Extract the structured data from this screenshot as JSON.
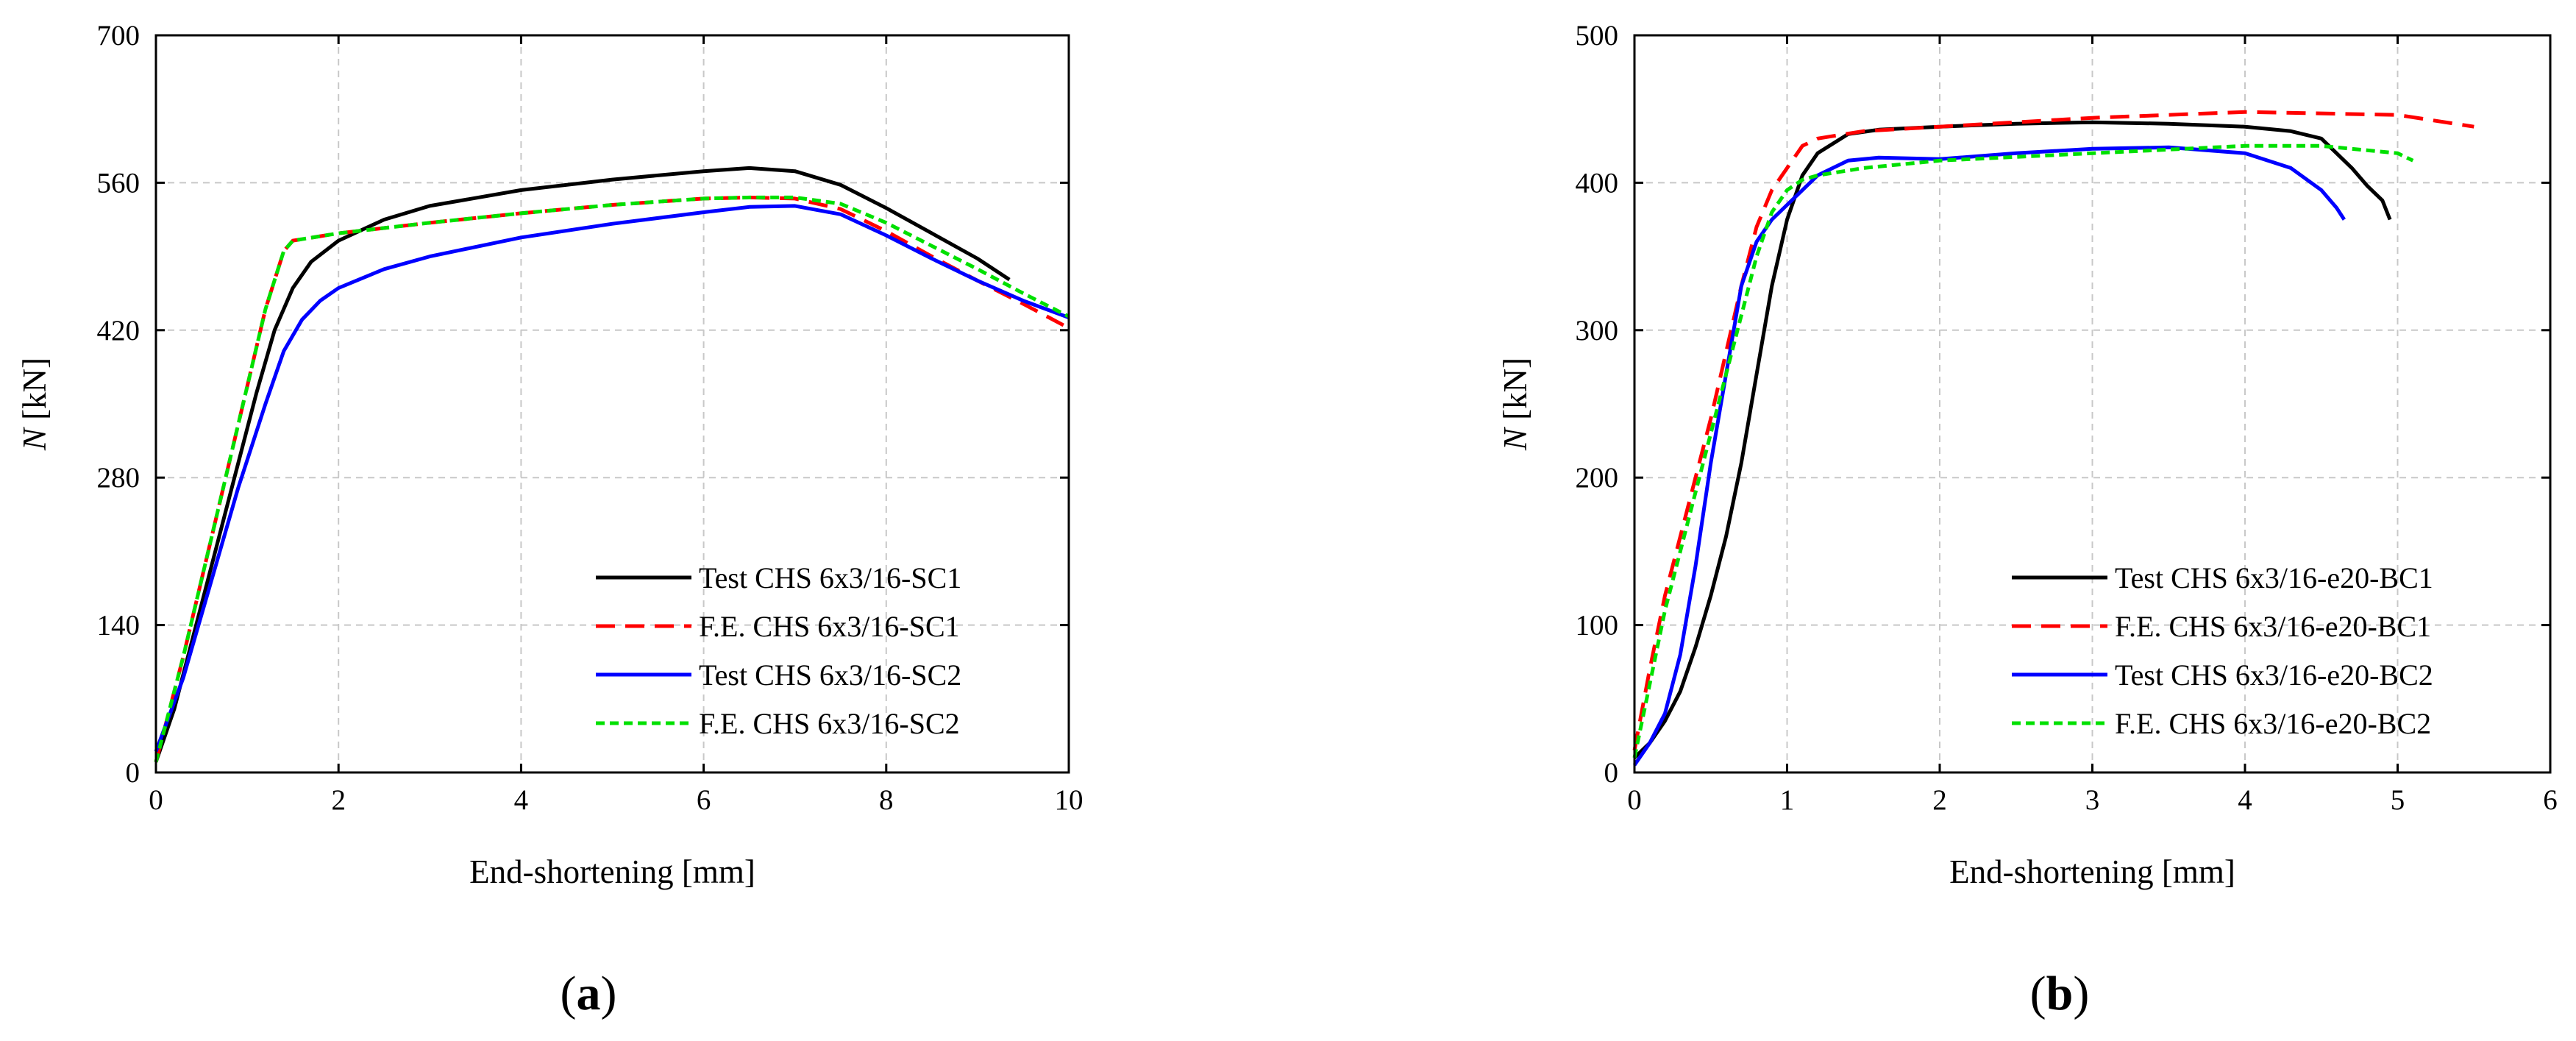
{
  "chart_data": [
    {
      "type": "line",
      "panel": "a",
      "xlabel": "End-shortening [mm]",
      "ylabel_italic": "N",
      "ylabel_rest": " [kN]",
      "xlim": [
        0,
        10
      ],
      "ylim": [
        0,
        700
      ],
      "xticks": [
        0,
        2,
        4,
        6,
        8,
        10
      ],
      "yticks": [
        0,
        140,
        280,
        420,
        560,
        700
      ],
      "grid": true,
      "legend_position": "bottom-right",
      "series": [
        {
          "name": "Test CHS 6x3/16-SC1",
          "color": "#000000",
          "style": "solid",
          "x": [
            0,
            0.2,
            0.5,
            0.8,
            1.1,
            1.3,
            1.5,
            1.7,
            2.0,
            2.5,
            3.0,
            4.0,
            5.0,
            6.0,
            6.5,
            7.0,
            7.5,
            8.0,
            8.5,
            9.0,
            9.35
          ],
          "y": [
            10,
            60,
            160,
            260,
            360,
            420,
            460,
            485,
            505,
            525,
            538,
            553,
            563,
            571,
            574,
            571,
            558,
            536,
            512,
            488,
            468
          ]
        },
        {
          "name": "F.E. CHS 6x3/16-SC1",
          "color": "#ff0000",
          "style": "dashed",
          "x": [
            0,
            0.3,
            0.6,
            0.9,
            1.2,
            1.4,
            1.5,
            2.0,
            3.0,
            4.0,
            5.0,
            6.0,
            6.5,
            7.0,
            7.5,
            8.0,
            8.5,
            9.0,
            9.5,
            10.0
          ],
          "y": [
            10,
            110,
            220,
            330,
            440,
            495,
            505,
            512,
            522,
            531,
            539,
            545,
            546,
            545,
            535,
            514,
            490,
            467,
            445,
            422
          ]
        },
        {
          "name": "Test CHS 6x3/16-SC2",
          "color": "#0000ff",
          "style": "solid",
          "x": [
            0,
            0.3,
            0.6,
            0.9,
            1.2,
            1.4,
            1.6,
            1.8,
            2.0,
            2.5,
            3.0,
            4.0,
            5.0,
            6.0,
            6.5,
            7.0,
            7.5,
            8.0,
            8.5,
            9.0,
            9.5,
            10.0
          ],
          "y": [
            20,
            90,
            180,
            270,
            350,
            400,
            430,
            448,
            460,
            478,
            490,
            508,
            521,
            532,
            537,
            538,
            530,
            510,
            488,
            467,
            448,
            432
          ]
        },
        {
          "name": "F.E. CHS 6x3/16-SC2",
          "color": "#00e000",
          "style": "dotted",
          "x": [
            0,
            0.3,
            0.6,
            0.9,
            1.2,
            1.4,
            1.5,
            2.0,
            3.0,
            4.0,
            5.0,
            6.0,
            6.5,
            7.0,
            7.5,
            8.0,
            8.5,
            9.0,
            9.5,
            10.0
          ],
          "y": [
            10,
            110,
            220,
            330,
            440,
            495,
            505,
            512,
            522,
            531,
            539,
            545,
            546,
            546,
            540,
            522,
            500,
            478,
            455,
            433
          ]
        }
      ]
    },
    {
      "type": "line",
      "panel": "b",
      "xlabel": "End-shortening [mm]",
      "ylabel_italic": "N",
      "ylabel_rest": " [kN]",
      "xlim": [
        0,
        6
      ],
      "ylim": [
        0,
        500
      ],
      "xticks": [
        0,
        1,
        2,
        3,
        4,
        5,
        6
      ],
      "yticks": [
        0,
        100,
        200,
        300,
        400,
        500
      ],
      "grid": true,
      "legend_position": "bottom-right",
      "series": [
        {
          "name": "Test CHS 6x3/16-e20-BC1",
          "color": "#000000",
          "style": "solid",
          "x": [
            0,
            0.1,
            0.2,
            0.3,
            0.4,
            0.5,
            0.6,
            0.7,
            0.8,
            0.9,
            1.0,
            1.1,
            1.2,
            1.4,
            1.6,
            2.0,
            2.5,
            3.0,
            3.5,
            4.0,
            4.3,
            4.5,
            4.6,
            4.7,
            4.8,
            4.9,
            4.95
          ],
          "y": [
            10,
            20,
            35,
            55,
            85,
            120,
            160,
            210,
            270,
            330,
            375,
            405,
            420,
            433,
            436,
            438,
            440,
            441,
            440,
            438,
            435,
            430,
            420,
            410,
            398,
            388,
            375
          ]
        },
        {
          "name": "F.E. CHS 6x3/16-e20-BC1",
          "color": "#ff0000",
          "style": "dashed",
          "x": [
            0,
            0.1,
            0.2,
            0.3,
            0.4,
            0.5,
            0.6,
            0.7,
            0.8,
            0.9,
            1.0,
            1.1,
            1.2,
            1.5,
            2.0,
            3.0,
            4.0,
            5.0,
            5.5
          ],
          "y": [
            15,
            70,
            120,
            160,
            200,
            240,
            285,
            330,
            370,
            395,
            410,
            425,
            430,
            435,
            438,
            444,
            448,
            446,
            438
          ]
        },
        {
          "name": "Test CHS 6x3/16-e20-BC2",
          "color": "#0000ff",
          "style": "solid",
          "x": [
            0,
            0.1,
            0.2,
            0.3,
            0.4,
            0.5,
            0.6,
            0.7,
            0.8,
            0.9,
            1.0,
            1.1,
            1.2,
            1.4,
            1.6,
            2.0,
            2.5,
            3.0,
            3.5,
            4.0,
            4.3,
            4.5,
            4.6,
            4.65
          ],
          "y": [
            5,
            20,
            40,
            80,
            140,
            210,
            270,
            330,
            360,
            375,
            385,
            395,
            405,
            415,
            417,
            416,
            420,
            423,
            424,
            420,
            410,
            395,
            383,
            375
          ]
        },
        {
          "name": "F.E. CHS 6x3/16-e20-BC2",
          "color": "#00e000",
          "style": "dotted",
          "x": [
            0,
            0.1,
            0.2,
            0.3,
            0.4,
            0.5,
            0.6,
            0.7,
            0.8,
            0.9,
            1.0,
            1.1,
            1.2,
            1.5,
            2.0,
            3.0,
            4.0,
            4.5,
            5.0,
            5.1
          ],
          "y": [
            10,
            60,
            110,
            150,
            190,
            230,
            270,
            310,
            350,
            380,
            395,
            402,
            405,
            410,
            415,
            420,
            425,
            425,
            420,
            415
          ]
        }
      ]
    }
  ],
  "panels": {
    "a": "a",
    "b": "b"
  }
}
